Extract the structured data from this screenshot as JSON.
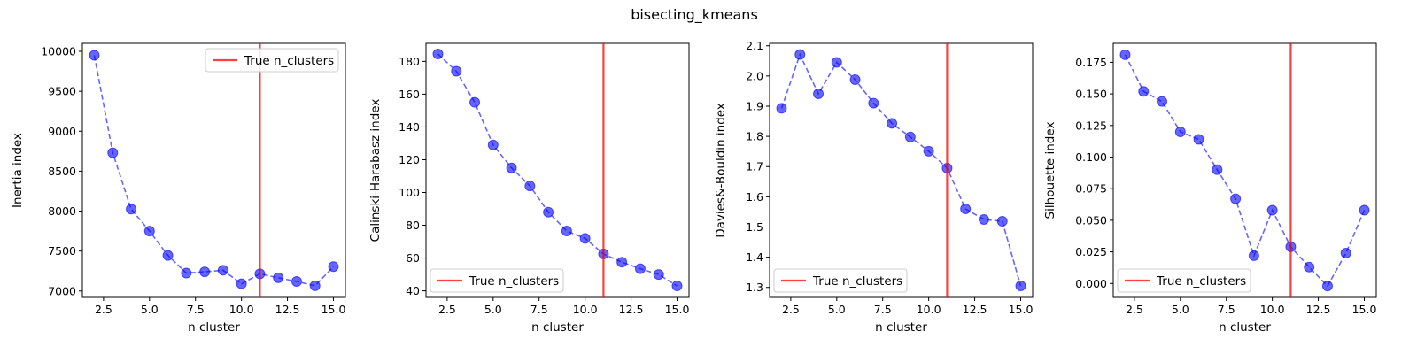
{
  "figure": {
    "title": "bisecting_kmeans"
  },
  "colors": {
    "series": "#0000ff",
    "true_line": "#ff0000"
  },
  "chart_data": [
    {
      "type": "line",
      "x": [
        2,
        3,
        4,
        5,
        6,
        7,
        8,
        9,
        10,
        11,
        12,
        13,
        14,
        15
      ],
      "series": [
        {
          "values": [
            9950,
            8730,
            8025,
            7750,
            7445,
            7225,
            7240,
            7260,
            7090,
            7215,
            7165,
            7120,
            7065,
            7305
          ]
        }
      ],
      "true_n_clusters": 11,
      "legend": {
        "label": "True n_clusters",
        "position": "top-right"
      },
      "title": "",
      "xlabel": "n cluster",
      "ylabel": "Inertia index",
      "xlim": [
        1.35,
        15.65
      ],
      "ylim": [
        6920,
        10100
      ],
      "xticks": [
        2.5,
        5.0,
        7.5,
        10.0,
        12.5,
        15.0
      ],
      "xtick_labels": [
        "2.5",
        "5.0",
        "7.5",
        "10.0",
        "12.5",
        "15.0"
      ],
      "yticks": [
        7000,
        7500,
        8000,
        8500,
        9000,
        9500,
        10000
      ],
      "ytick_labels": [
        "7000",
        "7500",
        "8000",
        "8500",
        "9000",
        "9500",
        "10000"
      ],
      "grid": false
    },
    {
      "type": "line",
      "x": [
        2,
        3,
        4,
        5,
        6,
        7,
        8,
        9,
        10,
        11,
        12,
        13,
        14,
        15
      ],
      "series": [
        {
          "values": [
            184.5,
            174,
            155,
            129,
            115,
            104,
            88,
            76.5,
            72,
            62.5,
            57.5,
            53.5,
            50,
            43
          ]
        }
      ],
      "true_n_clusters": 11,
      "legend": {
        "label": "True n_clusters",
        "position": "bottom-left"
      },
      "title": "",
      "xlabel": "n cluster",
      "ylabel": "Calinski-Harabasz index",
      "xlim": [
        1.35,
        15.65
      ],
      "ylim": [
        36,
        191
      ],
      "xticks": [
        2.5,
        5.0,
        7.5,
        10.0,
        12.5,
        15.0
      ],
      "xtick_labels": [
        "2.5",
        "5.0",
        "7.5",
        "10.0",
        "12.5",
        "15.0"
      ],
      "yticks": [
        40,
        60,
        80,
        100,
        120,
        140,
        160,
        180
      ],
      "ytick_labels": [
        "40",
        "60",
        "80",
        "100",
        "120",
        "140",
        "160",
        "180"
      ],
      "grid": false
    },
    {
      "type": "line",
      "x": [
        2,
        3,
        4,
        5,
        6,
        7,
        8,
        9,
        10,
        11,
        12,
        13,
        14,
        15
      ],
      "series": [
        {
          "values": [
            1.893,
            2.071,
            1.941,
            2.045,
            1.988,
            1.91,
            1.843,
            1.798,
            1.751,
            1.695,
            1.56,
            1.525,
            1.519,
            1.305
          ]
        }
      ],
      "true_n_clusters": 11,
      "legend": {
        "label": "True n_clusters",
        "position": "bottom-left"
      },
      "title": "",
      "xlabel": "n cluster",
      "ylabel": "Davies&-Bouldin index",
      "xlim": [
        1.35,
        15.65
      ],
      "ylim": [
        1.267,
        2.108
      ],
      "xticks": [
        2.5,
        5.0,
        7.5,
        10.0,
        12.5,
        15.0
      ],
      "xtick_labels": [
        "2.5",
        "5.0",
        "7.5",
        "10.0",
        "12.5",
        "15.0"
      ],
      "yticks": [
        1.3,
        1.4,
        1.5,
        1.6,
        1.7,
        1.8,
        1.9,
        2.0,
        2.1
      ],
      "ytick_labels": [
        "1.3",
        "1.4",
        "1.5",
        "1.6",
        "1.7",
        "1.8",
        "1.9",
        "2.0",
        "2.1"
      ],
      "grid": false
    },
    {
      "type": "line",
      "x": [
        2,
        3,
        4,
        5,
        6,
        7,
        8,
        9,
        10,
        11,
        12,
        13,
        14,
        15
      ],
      "series": [
        {
          "values": [
            0.181,
            0.152,
            0.144,
            0.12,
            0.114,
            0.09,
            0.067,
            0.022,
            0.058,
            0.029,
            0.013,
            -0.002,
            0.024,
            0.058
          ]
        }
      ],
      "true_n_clusters": 11,
      "legend": {
        "label": "True n_clusters",
        "position": "bottom-left"
      },
      "title": "",
      "xlabel": "n cluster",
      "ylabel": "Silhouette index",
      "xlim": [
        1.35,
        15.65
      ],
      "ylim": [
        -0.011,
        0.19
      ],
      "xticks": [
        2.5,
        5.0,
        7.5,
        10.0,
        12.5,
        15.0
      ],
      "xtick_labels": [
        "2.5",
        "5.0",
        "7.5",
        "10.0",
        "12.5",
        "15.0"
      ],
      "yticks": [
        0.0,
        0.025,
        0.05,
        0.075,
        0.1,
        0.125,
        0.15,
        0.175
      ],
      "ytick_labels": [
        "0.000",
        "0.025",
        "0.050",
        "0.075",
        "0.100",
        "0.125",
        "0.150",
        "0.175"
      ],
      "grid": false
    }
  ]
}
